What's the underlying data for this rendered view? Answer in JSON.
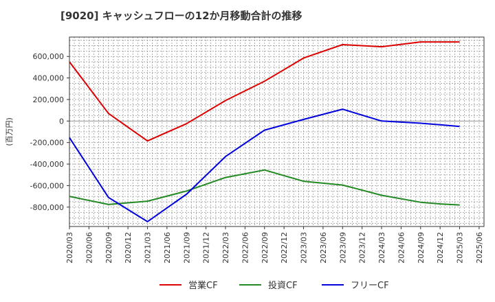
{
  "chart_data": {
    "type": "line",
    "title": "[9020]  キャッシュフローの12か月移動合計の推移",
    "ylabel": "(百万円)",
    "xlabel": "",
    "ylim": [
      -980000,
      780000
    ],
    "yticks": [
      600000,
      400000,
      200000,
      0,
      -200000,
      -400000,
      -600000,
      -800000
    ],
    "ytick_labels": [
      "600,000",
      "400,000",
      "200,000",
      "0",
      "-200,000",
      "-400,000",
      "-600,000",
      "-800,000"
    ],
    "xticks": [
      "2020/03",
      "2020/06",
      "2020/09",
      "2020/12",
      "2021/03",
      "2021/06",
      "2021/09",
      "2021/12",
      "2022/03",
      "2022/06",
      "2022/09",
      "2022/12",
      "2023/03",
      "2023/06",
      "2023/09",
      "2023/12",
      "2024/03",
      "2024/06",
      "2024/09",
      "2024/12",
      "2025/03",
      "2025/06"
    ],
    "x": [
      "2020/03",
      "2020/09",
      "2021/03",
      "2021/09",
      "2022/03",
      "2022/09",
      "2023/03",
      "2023/09",
      "2024/03",
      "2024/09",
      "2024/12",
      "2025/03"
    ],
    "series": [
      {
        "name": "営業CF",
        "color": "#dd0000",
        "values": [
          550000,
          70000,
          -185000,
          -25000,
          190000,
          370000,
          585000,
          710000,
          690000,
          735000,
          735000,
          735000
        ]
      },
      {
        "name": "投資CF",
        "color": "#228822",
        "values": [
          -700000,
          -775000,
          -745000,
          -650000,
          -525000,
          -455000,
          -560000,
          -595000,
          -690000,
          -755000,
          -770000,
          -780000
        ]
      },
      {
        "name": "フリーCF",
        "color": "#0000dd",
        "values": [
          -155000,
          -710000,
          -935000,
          -680000,
          -330000,
          -85000,
          15000,
          110000,
          0,
          -20000,
          -35000,
          -50000
        ]
      }
    ],
    "grid": true,
    "legend_position": "bottom-center"
  }
}
